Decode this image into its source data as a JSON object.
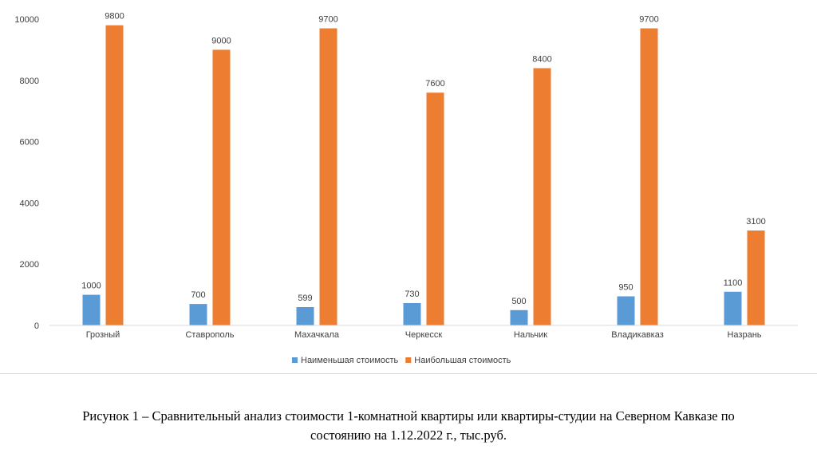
{
  "chart_data": {
    "type": "bar",
    "categories": [
      "Грозный",
      "Ставрополь",
      "Махачкала",
      "Черкесск",
      "Нальчик",
      "Владикавказ",
      "Назрань"
    ],
    "series": [
      {
        "name": "Наименьшая стоимость",
        "values": [
          1000,
          700,
          599,
          730,
          500,
          950,
          1100
        ],
        "color": "#5b9bd5"
      },
      {
        "name": "Наибольшая стоимость",
        "values": [
          9800,
          9000,
          9700,
          7600,
          8400,
          9700,
          3100
        ],
        "color": "#ed7d31"
      }
    ],
    "ylim": [
      0,
      10000
    ],
    "yticks": [
      "0",
      "2000",
      "4000",
      "6000",
      "8000",
      "10000"
    ],
    "grid": false,
    "legend_position": "bottom"
  },
  "caption": {
    "line1": "Рисунок 1 – Сравнительный анализ стоимости 1-комнатной квартиры или квартиры-студии на Северном Кавказе по",
    "line2": "состоянию на 1.12.2022 г., тыс.руб."
  }
}
